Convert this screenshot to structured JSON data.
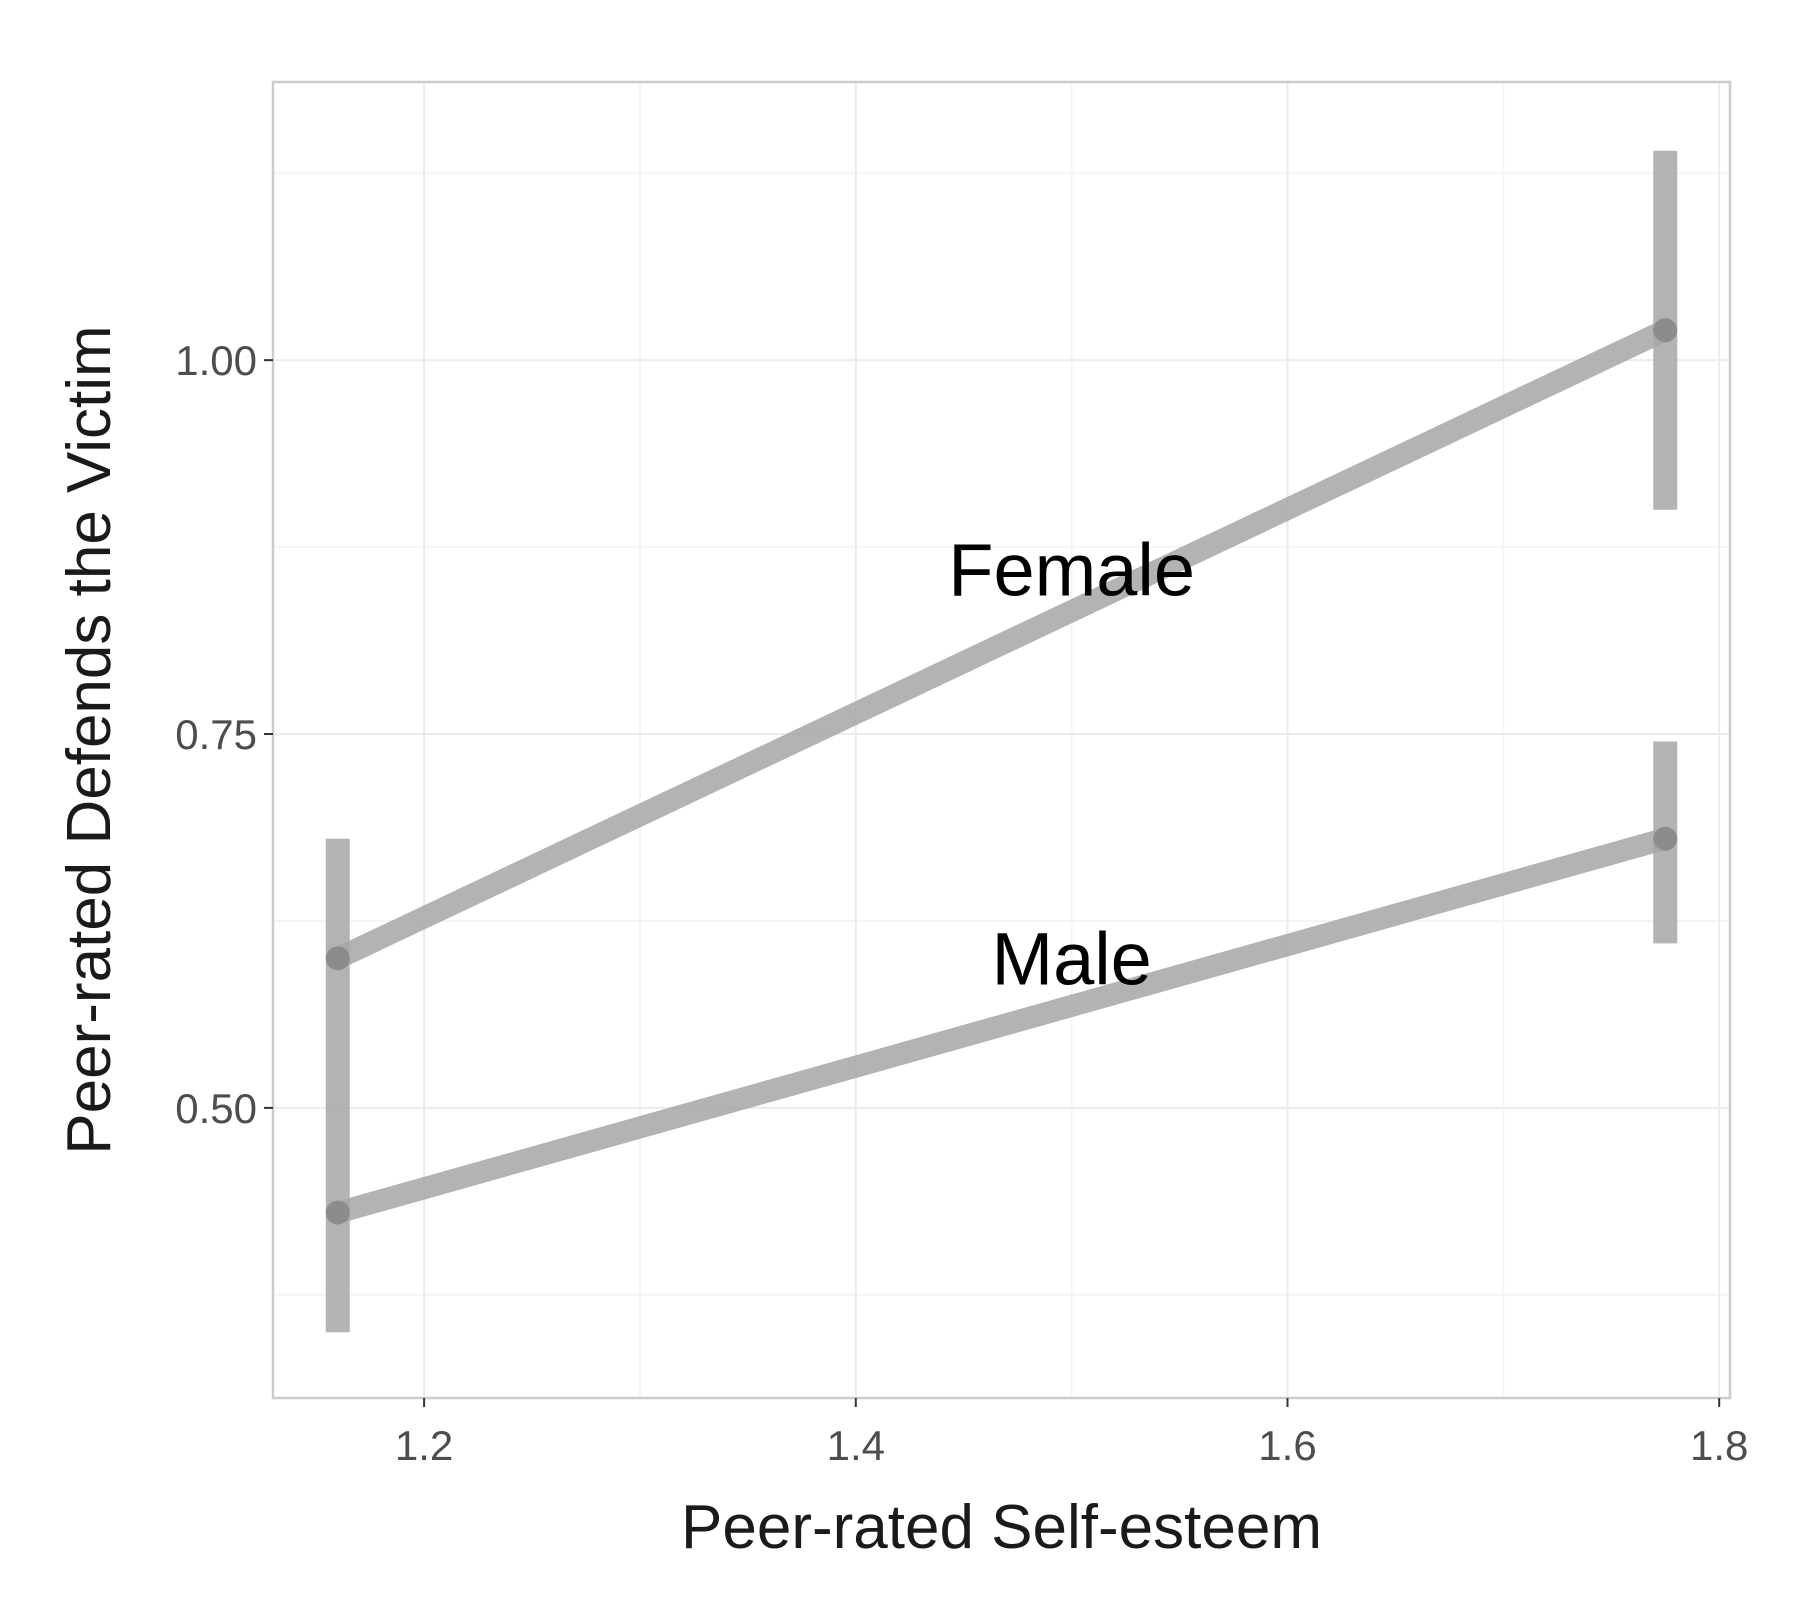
{
  "chart_data": {
    "type": "line",
    "xlabel": "Peer-rated Self-esteem",
    "ylabel": "Peer-rated Defends the Victim",
    "xlim": [
      1.13,
      1.805
    ],
    "ylim": [
      0.306,
      1.186
    ],
    "xticks": [
      "1.2",
      "1.4",
      "1.6",
      "1.8"
    ],
    "yticks": [
      "0.50",
      "0.75",
      "1.00"
    ],
    "x_minor_grid": [
      1.3,
      1.5,
      1.7
    ],
    "y_minor_grid": [
      0.375,
      0.625,
      0.875,
      1.125
    ],
    "grid": true,
    "legend": "none",
    "colors": {
      "line": "#a6a6a6",
      "point": "#8c8c8c",
      "grid": "#ebebeb",
      "panel_border": "#cccccc"
    },
    "series": [
      {
        "name": "Female",
        "x": [
          1.16,
          1.775
        ],
        "y": [
          0.6,
          1.02
        ],
        "error_bars": [
          {
            "x": 1.16,
            "lower": 0.52,
            "upper": 0.68
          },
          {
            "x": 1.775,
            "lower": 0.9,
            "upper": 1.14
          }
        ],
        "label_anchor": [
          1.5,
          0.86
        ]
      },
      {
        "name": "Male",
        "x": [
          1.16,
          1.775
        ],
        "y": [
          0.43,
          0.68
        ],
        "error_bars": [
          {
            "x": 1.16,
            "lower": 0.35,
            "upper": 0.52
          },
          {
            "x": 1.775,
            "lower": 0.61,
            "upper": 0.745
          }
        ],
        "label_anchor": [
          1.5,
          0.6
        ]
      }
    ]
  }
}
